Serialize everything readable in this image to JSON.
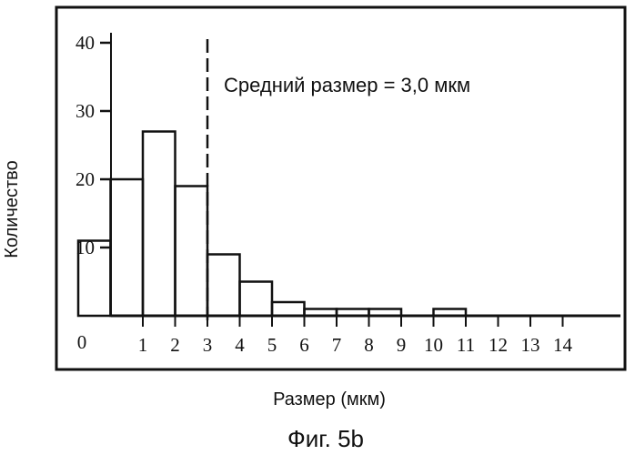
{
  "chart_data": {
    "type": "bar",
    "bins": [
      {
        "start": -1,
        "end": 0,
        "value": 11
      },
      {
        "start": 0,
        "end": 1,
        "value": 20
      },
      {
        "start": 1,
        "end": 2,
        "value": 27
      },
      {
        "start": 2,
        "end": 3,
        "value": 19
      },
      {
        "start": 3,
        "end": 4,
        "value": 9
      },
      {
        "start": 4,
        "end": 5,
        "value": 5
      },
      {
        "start": 5,
        "end": 6,
        "value": 2
      },
      {
        "start": 6,
        "end": 7,
        "value": 1
      },
      {
        "start": 7,
        "end": 8,
        "value": 1
      },
      {
        "start": 8,
        "end": 9,
        "value": 1
      },
      {
        "start": 10,
        "end": 11,
        "value": 1
      }
    ],
    "x_ticks": [
      1,
      2,
      3,
      4,
      5,
      6,
      7,
      8,
      9,
      10,
      11,
      12,
      13,
      14
    ],
    "y_ticks": [
      10,
      20,
      30,
      40
    ],
    "zero_label": "0",
    "xlim": [
      -1,
      15.5
    ],
    "ylim": [
      0,
      40
    ],
    "xlabel": "Размер (мкм)",
    "ylabel": "Количество",
    "mean_line": {
      "x": 3.0,
      "style": "dashed"
    },
    "annotation": "Средний размер = 3,0 мкм",
    "grid": false
  },
  "caption": "Фиг. 5b"
}
